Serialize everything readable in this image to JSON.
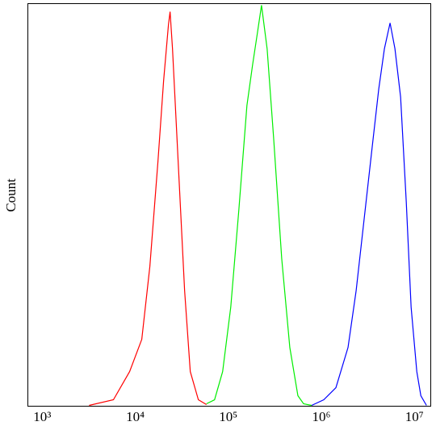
{
  "chart_data": {
    "type": "line",
    "y_label": "Count",
    "x_log": true,
    "grid": false,
    "xlim": [
      700,
      15000000
    ],
    "ylim": [
      0,
      100
    ],
    "xticks": [
      {
        "value": 1000,
        "label": "10³"
      },
      {
        "value": 10000,
        "label": "10⁴"
      },
      {
        "value": 100000,
        "label": "10⁵"
      },
      {
        "value": 1000000,
        "label": "10⁶"
      },
      {
        "value": 10000000,
        "label": "10⁷"
      }
    ],
    "series": [
      {
        "color": "#ff0000",
        "x": [
          3190,
          5820,
          8690,
          11740,
          14340,
          17510,
          20150,
          22730,
          23660,
          25120,
          28900,
          33900,
          39000,
          47640,
          58210
        ],
        "values": [
          0.2,
          1.6,
          8.6,
          16.6,
          34.7,
          60.7,
          80.8,
          94.8,
          98.0,
          88.8,
          60.7,
          28.7,
          8.6,
          1.6,
          0.4
        ]
      },
      {
        "color": "#00ee00",
        "x": [
          58210,
          71120,
          86900,
          106200,
          129700,
          158500,
          182400,
          205700,
          227400,
          261300,
          306800,
          374900,
          458100,
          559700,
          644200,
          787100
        ],
        "values": [
          0.6,
          1.6,
          8.6,
          24.6,
          48.7,
          74.7,
          84.8,
          92.8,
          99.6,
          88.8,
          66.7,
          36.7,
          14.6,
          2.6,
          0.6,
          0.2
        ]
      },
      {
        "color": "#0000ff",
        "x": [
          787100,
          1062000,
          1434000,
          1936000,
          2366000,
          2891000,
          3532000,
          4141000,
          4764000,
          5480000,
          6182000,
          7112000,
          8185000,
          9226000,
          10620000,
          11740000,
          13490000
        ],
        "values": [
          0.2,
          1.6,
          4.6,
          14.6,
          28.7,
          46.7,
          64.7,
          78.8,
          88.8,
          95.2,
          88.8,
          76.8,
          50.7,
          24.6,
          8.6,
          2.6,
          0.2
        ]
      }
    ]
  }
}
